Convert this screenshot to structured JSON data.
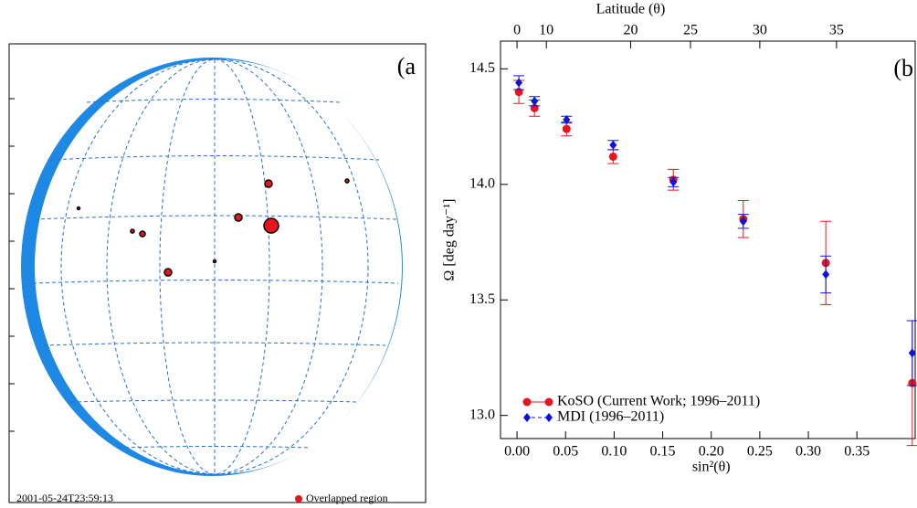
{
  "chart_data": [
    {
      "type": "image",
      "panel_label": "(a",
      "timestamp": "2001-05-24T23:59:13",
      "legend": "Overlapped region",
      "legend_color": "#e8141e"
    },
    {
      "type": "scatter",
      "panel_label": "(b",
      "title": "Latitude (θ)",
      "xlabel": "sin²(θ)",
      "ylabel": "Ω [deg day⁻¹]",
      "x": [
        0.0019,
        0.018,
        0.051,
        0.099,
        0.161,
        0.233,
        0.318,
        0.407
      ],
      "series": [
        {
          "name": "KoSO (Current Work; 1996–2011)",
          "color": "#e8141e",
          "marker": "circle",
          "linestyle": "solid",
          "values": [
            14.4,
            14.33,
            14.24,
            14.12,
            14.02,
            13.85,
            13.66,
            13.14
          ],
          "errors": [
            0.05,
            0.035,
            0.03,
            0.03,
            0.045,
            0.08,
            0.18,
            0.27
          ]
        },
        {
          "name": "MDI (1996–2011)",
          "color": "#1010e0",
          "marker": "diamond",
          "linestyle": "dashed",
          "values": [
            14.44,
            14.36,
            14.28,
            14.17,
            14.01,
            13.84,
            13.61,
            13.27
          ],
          "errors": [
            0.03,
            0.02,
            0.015,
            0.02,
            0.02,
            0.03,
            0.08,
            0.14
          ]
        }
      ],
      "xlim": [
        -0.017,
        0.41
      ],
      "ylim": [
        12.9,
        14.62
      ],
      "xticks": [
        {
          "value": 0,
          "label": "0.00"
        },
        {
          "value": 0.05,
          "label": "0.05"
        },
        {
          "value": 0.1,
          "label": "0.10"
        },
        {
          "value": 0.15,
          "label": "0.15"
        },
        {
          "value": 0.2,
          "label": "0.20"
        },
        {
          "value": 0.25,
          "label": "0.25"
        },
        {
          "value": 0.3,
          "label": "0.30"
        },
        {
          "value": 0.35,
          "label": "0.35"
        }
      ],
      "x2ticks": [
        {
          "value": 0,
          "label": "0"
        },
        {
          "value": 0.0302,
          "label": "10"
        },
        {
          "value": 0.117,
          "label": "20"
        },
        {
          "value": 0.1786,
          "label": "25"
        },
        {
          "value": 0.25,
          "label": "30"
        },
        {
          "value": 0.329,
          "label": "35"
        }
      ],
      "yticks": [
        {
          "value": 13,
          "label": "13.0"
        },
        13.5,
        {
          "value": 14,
          "label": "14.0"
        },
        14.5
      ]
    }
  ]
}
